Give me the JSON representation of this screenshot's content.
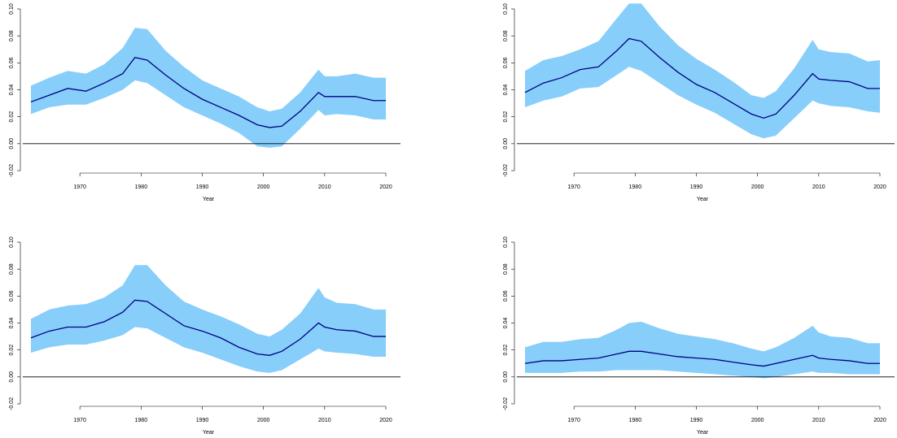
{
  "chart_data": [
    {
      "type": "band-line",
      "xlabel": "Year",
      "xlim": [
        1962,
        2020
      ],
      "xticks": [
        1970,
        1980,
        1990,
        2000,
        2010,
        2020
      ],
      "ylim": [
        -0.02,
        0.1
      ],
      "yticks": [
        -0.02,
        {
          "value": 0.0,
          "label": "0.00"
        },
        0.02,
        0.04,
        0.06,
        0.08,
        {
          "value": 0.1,
          "label": "0.10"
        }
      ],
      "hline": 0,
      "x": [
        1962,
        1965,
        1968,
        1971,
        1974,
        1977,
        1979,
        1981,
        1984,
        1987,
        1990,
        1993,
        1996,
        1999,
        2001,
        2003,
        2006,
        2009,
        2010,
        2012,
        2015,
        2018,
        2020
      ],
      "series": [
        {
          "color": "#87cefa",
          "lower": [
            0.022,
            0.027,
            0.029,
            0.029,
            0.034,
            0.04,
            0.047,
            0.045,
            0.036,
            0.027,
            0.021,
            0.015,
            0.008,
            -0.002,
            -0.003,
            -0.002,
            0.011,
            0.025,
            0.021,
            0.022,
            0.021,
            0.018,
            0.018
          ],
          "upper": [
            0.043,
            0.049,
            0.054,
            0.052,
            0.059,
            0.071,
            0.086,
            0.085,
            0.069,
            0.057,
            0.047,
            0.041,
            0.035,
            0.027,
            0.024,
            0.026,
            0.038,
            0.055,
            0.05,
            0.05,
            0.052,
            0.049,
            0.049
          ]
        },
        {
          "color": "#000080",
          "values": [
            0.031,
            0.036,
            0.041,
            0.039,
            0.045,
            0.052,
            0.064,
            0.062,
            0.051,
            0.041,
            0.033,
            0.027,
            0.021,
            0.014,
            0.012,
            0.013,
            0.024,
            0.038,
            0.035,
            0.035,
            0.035,
            0.032,
            0.032
          ]
        }
      ]
    },
    {
      "type": "band-line",
      "xlabel": "Year",
      "xlim": [
        1962,
        2020
      ],
      "xticks": [
        1970,
        1980,
        1990,
        2000,
        2010,
        2020
      ],
      "ylim": [
        -0.02,
        0.1
      ],
      "yticks": [
        -0.02,
        {
          "value": 0.0,
          "label": "0.00"
        },
        0.02,
        0.04,
        0.06,
        0.08,
        {
          "value": 0.1,
          "label": "0.10"
        }
      ],
      "hline": 0,
      "x": [
        1962,
        1965,
        1968,
        1971,
        1974,
        1977,
        1979,
        1981,
        1984,
        1987,
        1990,
        1993,
        1996,
        1999,
        2001,
        2003,
        2006,
        2009,
        2010,
        2012,
        2015,
        2018,
        2020
      ],
      "series": [
        {
          "color": "#87cefa",
          "lower": [
            0.027,
            0.032,
            0.035,
            0.041,
            0.042,
            0.051,
            0.057,
            0.054,
            0.045,
            0.036,
            0.029,
            0.023,
            0.015,
            0.007,
            0.004,
            0.006,
            0.019,
            0.032,
            0.03,
            0.028,
            0.027,
            0.024,
            0.023
          ],
          "upper": [
            0.054,
            0.062,
            0.065,
            0.07,
            0.076,
            0.093,
            0.104,
            0.104,
            0.087,
            0.073,
            0.063,
            0.055,
            0.046,
            0.036,
            0.034,
            0.039,
            0.056,
            0.077,
            0.07,
            0.068,
            0.067,
            0.061,
            0.062
          ]
        },
        {
          "color": "#000080",
          "values": [
            0.038,
            0.045,
            0.049,
            0.055,
            0.057,
            0.069,
            0.078,
            0.076,
            0.064,
            0.053,
            0.044,
            0.038,
            0.03,
            0.022,
            0.019,
            0.022,
            0.036,
            0.052,
            0.048,
            0.047,
            0.046,
            0.041,
            0.041
          ]
        }
      ]
    },
    {
      "type": "band-line",
      "xlabel": "Year",
      "xlim": [
        1962,
        2020
      ],
      "xticks": [
        1970,
        1980,
        1990,
        2000,
        2010,
        2020
      ],
      "ylim": [
        -0.02,
        0.1
      ],
      "yticks": [
        -0.02,
        {
          "value": 0.0,
          "label": "0.00"
        },
        0.02,
        0.04,
        0.06,
        0.08,
        {
          "value": 0.1,
          "label": "0.10"
        }
      ],
      "hline": 0,
      "x": [
        1962,
        1965,
        1968,
        1971,
        1974,
        1977,
        1979,
        1981,
        1984,
        1987,
        1990,
        1993,
        1996,
        1999,
        2001,
        2003,
        2006,
        2009,
        2010,
        2012,
        2015,
        2018,
        2020
      ],
      "series": [
        {
          "color": "#87cefa",
          "lower": [
            0.018,
            0.022,
            0.024,
            0.024,
            0.027,
            0.031,
            0.037,
            0.036,
            0.029,
            0.022,
            0.018,
            0.013,
            0.008,
            0.004,
            0.003,
            0.005,
            0.013,
            0.021,
            0.019,
            0.018,
            0.017,
            0.015,
            0.015
          ],
          "upper": [
            0.043,
            0.05,
            0.053,
            0.054,
            0.059,
            0.068,
            0.083,
            0.083,
            0.068,
            0.056,
            0.05,
            0.045,
            0.039,
            0.032,
            0.03,
            0.035,
            0.047,
            0.066,
            0.059,
            0.055,
            0.054,
            0.05,
            0.05
          ]
        },
        {
          "color": "#000080",
          "values": [
            0.029,
            0.034,
            0.037,
            0.037,
            0.041,
            0.048,
            0.057,
            0.056,
            0.047,
            0.038,
            0.034,
            0.029,
            0.022,
            0.017,
            0.016,
            0.019,
            0.028,
            0.04,
            0.037,
            0.035,
            0.034,
            0.03,
            0.03
          ]
        }
      ]
    },
    {
      "type": "band-line",
      "xlabel": "Year",
      "xlim": [
        1962,
        2020
      ],
      "xticks": [
        1970,
        1980,
        1990,
        2000,
        2010,
        2020
      ],
      "ylim": [
        -0.02,
        0.1
      ],
      "yticks": [
        -0.02,
        {
          "value": 0.0,
          "label": "0.00"
        },
        0.02,
        0.04,
        0.06,
        0.08,
        {
          "value": 0.1,
          "label": "0.10"
        }
      ],
      "hline": 0,
      "x": [
        1962,
        1965,
        1968,
        1971,
        1974,
        1977,
        1979,
        1981,
        1984,
        1987,
        1990,
        1993,
        1996,
        1999,
        2001,
        2003,
        2006,
        2009,
        2010,
        2012,
        2015,
        2018,
        2020
      ],
      "series": [
        {
          "color": "#87cefa",
          "lower": [
            0.003,
            0.003,
            0.003,
            0.004,
            0.004,
            0.005,
            0.005,
            0.005,
            0.005,
            0.004,
            0.003,
            0.002,
            0.001,
            0.0,
            -0.001,
            0.0,
            0.002,
            0.004,
            0.003,
            0.003,
            0.002,
            0.002,
            0.002
          ],
          "upper": [
            0.022,
            0.026,
            0.026,
            0.028,
            0.029,
            0.035,
            0.04,
            0.041,
            0.036,
            0.032,
            0.03,
            0.028,
            0.025,
            0.021,
            0.019,
            0.022,
            0.029,
            0.038,
            0.033,
            0.03,
            0.029,
            0.025,
            0.025
          ]
        },
        {
          "color": "#000080",
          "values": [
            0.01,
            0.012,
            0.012,
            0.013,
            0.014,
            0.017,
            0.019,
            0.019,
            0.017,
            0.015,
            0.014,
            0.013,
            0.011,
            0.009,
            0.008,
            0.01,
            0.013,
            0.016,
            0.014,
            0.013,
            0.012,
            0.01,
            0.01
          ]
        }
      ]
    }
  ]
}
